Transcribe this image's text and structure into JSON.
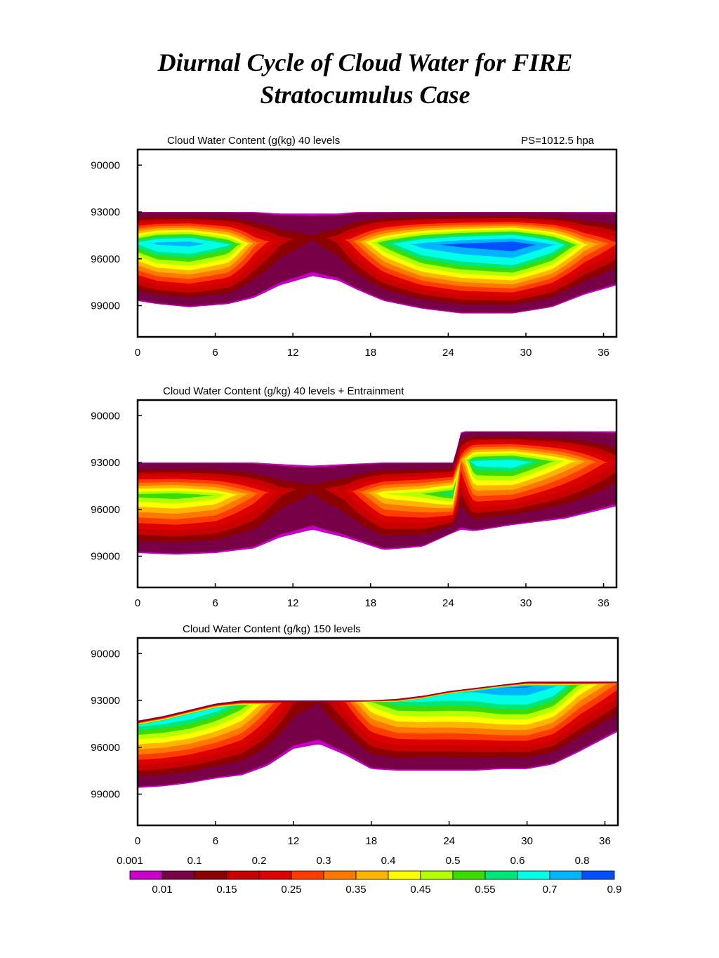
{
  "page": {
    "title_line1": "Diurnal Cycle of Cloud Water for FIRE",
    "title_line2": "Stratocumulus Case"
  },
  "chart_data": [
    {
      "type": "heatmap",
      "title": "Cloud Water Content (g(kg) 40 levels",
      "subtitle": "PS=1012.5 hpa",
      "xlabel": "",
      "ylabel": "",
      "x_ticks": [
        "0",
        "6",
        "12",
        "18",
        "24",
        "30",
        "36"
      ],
      "y_ticks": [
        "90000",
        "93000",
        "96000",
        "99000"
      ],
      "xlim": [
        0,
        37
      ],
      "ylim": [
        101000,
        89000
      ],
      "cloud": [
        {
          "x": 0,
          "top": 93000,
          "bot": 98700,
          "core": 95000,
          "peak": 0.62
        },
        {
          "x": 1.5,
          "top": 93000,
          "bot": 98900,
          "core": 95000,
          "peak": 0.73
        },
        {
          "x": 4,
          "top": 93000,
          "bot": 99100,
          "core": 95000,
          "peak": 0.76
        },
        {
          "x": 7,
          "top": 93000,
          "bot": 98900,
          "core": 95100,
          "peak": 0.62
        },
        {
          "x": 9,
          "top": 93000,
          "bot": 98500,
          "core": 95000,
          "peak": 0.33
        },
        {
          "x": 11,
          "top": 93100,
          "bot": 97700,
          "core": 94800,
          "peak": 0.18
        },
        {
          "x": 13.5,
          "top": 93100,
          "bot": 97100,
          "core": 94600,
          "peak": 0.11
        },
        {
          "x": 15.5,
          "top": 93100,
          "bot": 97400,
          "core": 94700,
          "peak": 0.18
        },
        {
          "x": 17,
          "top": 93000,
          "bot": 98000,
          "core": 94900,
          "peak": 0.33
        },
        {
          "x": 19,
          "top": 93000,
          "bot": 98700,
          "core": 95000,
          "peak": 0.55
        },
        {
          "x": 22,
          "top": 93000,
          "bot": 99200,
          "core": 95100,
          "peak": 0.76
        },
        {
          "x": 25,
          "top": 93000,
          "bot": 99500,
          "core": 95100,
          "peak": 0.85
        },
        {
          "x": 29,
          "top": 93000,
          "bot": 99500,
          "core": 95100,
          "peak": 0.92
        },
        {
          "x": 32,
          "top": 93000,
          "bot": 99100,
          "core": 95100,
          "peak": 0.72
        },
        {
          "x": 34.5,
          "top": 93000,
          "bot": 98300,
          "core": 95100,
          "peak": 0.42
        },
        {
          "x": 37,
          "top": 93000,
          "bot": 97700,
          "core": 95000,
          "peak": 0.26
        }
      ]
    },
    {
      "type": "heatmap",
      "title": "Cloud Water Content (g/kg) 40 levels + Entrainment",
      "xlabel": "",
      "ylabel": "",
      "x_ticks": [
        "0",
        "6",
        "12",
        "18",
        "24",
        "30",
        "36"
      ],
      "y_ticks": [
        "90000",
        "93000",
        "96000",
        "99000"
      ],
      "xlim": [
        0,
        37
      ],
      "ylim": [
        101000,
        89000
      ],
      "cloud": [
        {
          "x": 0,
          "top": 93000,
          "bot": 98800,
          "core": 95100,
          "peak": 0.53
        },
        {
          "x": 3,
          "top": 93000,
          "bot": 98900,
          "core": 95100,
          "peak": 0.55
        },
        {
          "x": 6,
          "top": 93000,
          "bot": 98800,
          "core": 95100,
          "peak": 0.5
        },
        {
          "x": 9,
          "top": 93000,
          "bot": 98500,
          "core": 95000,
          "peak": 0.32
        },
        {
          "x": 11,
          "top": 93100,
          "bot": 97800,
          "core": 94800,
          "peak": 0.18
        },
        {
          "x": 13.5,
          "top": 93200,
          "bot": 97300,
          "core": 94600,
          "peak": 0.12
        },
        {
          "x": 16,
          "top": 93100,
          "bot": 97800,
          "core": 94800,
          "peak": 0.2
        },
        {
          "x": 19,
          "top": 93000,
          "bot": 98600,
          "core": 95000,
          "peak": 0.45
        },
        {
          "x": 22,
          "top": 93000,
          "bot": 98400,
          "core": 95000,
          "peak": 0.5
        },
        {
          "x": 24.4,
          "top": 93000,
          "bot": 97500,
          "core": 95000,
          "peak": 0.6
        },
        {
          "x": 25,
          "top": 91000,
          "bot": 97300,
          "core": 92700,
          "peak": 0.3
        },
        {
          "x": 26,
          "top": 91000,
          "bot": 97400,
          "core": 93000,
          "peak": 0.65
        },
        {
          "x": 29,
          "top": 91000,
          "bot": 97000,
          "core": 93000,
          "peak": 0.68
        },
        {
          "x": 33,
          "top": 91000,
          "bot": 96600,
          "core": 92900,
          "peak": 0.45
        },
        {
          "x": 37,
          "top": 91000,
          "bot": 95800,
          "core": 93000,
          "peak": 0.2
        }
      ]
    },
    {
      "type": "heatmap",
      "title": "Cloud Water Content (g/kg) 150 levels",
      "xlabel": "",
      "ylabel": "",
      "x_ticks": [
        "0",
        "6",
        "12",
        "18",
        "24",
        "30",
        "36"
      ],
      "y_ticks": [
        "90000",
        "93000",
        "96000",
        "99000"
      ],
      "xlim": [
        0,
        37
      ],
      "ylim": [
        101000,
        89000
      ],
      "cloud": [
        {
          "x": 0,
          "top": 94300,
          "bot": 98600,
          "core": 94600,
          "peak": 0.62
        },
        {
          "x": 2,
          "top": 94000,
          "bot": 98500,
          "core": 94300,
          "peak": 0.65
        },
        {
          "x": 4,
          "top": 93600,
          "bot": 98300,
          "core": 93900,
          "peak": 0.67
        },
        {
          "x": 6,
          "top": 93200,
          "bot": 98000,
          "core": 93500,
          "peak": 0.65
        },
        {
          "x": 8,
          "top": 93000,
          "bot": 97800,
          "core": 93300,
          "peak": 0.55
        },
        {
          "x": 10,
          "top": 93000,
          "bot": 97200,
          "core": 93200,
          "peak": 0.35
        },
        {
          "x": 12,
          "top": 93000,
          "bot": 96100,
          "core": 93100,
          "peak": 0.16
        },
        {
          "x": 14,
          "top": 93000,
          "bot": 95800,
          "core": 93100,
          "peak": 0.1
        },
        {
          "x": 16,
          "top": 93000,
          "bot": 96500,
          "core": 93100,
          "peak": 0.25
        },
        {
          "x": 18,
          "top": 93000,
          "bot": 97400,
          "core": 93100,
          "peak": 0.5
        },
        {
          "x": 20,
          "top": 92900,
          "bot": 97500,
          "core": 93100,
          "peak": 0.6
        },
        {
          "x": 22,
          "top": 92700,
          "bot": 97500,
          "core": 92900,
          "peak": 0.64
        },
        {
          "x": 24,
          "top": 92400,
          "bot": 97500,
          "core": 92600,
          "peak": 0.68
        },
        {
          "x": 26,
          "top": 92200,
          "bot": 97500,
          "core": 92400,
          "peak": 0.72
        },
        {
          "x": 28,
          "top": 92000,
          "bot": 97400,
          "core": 92200,
          "peak": 0.8
        },
        {
          "x": 30,
          "top": 91800,
          "bot": 97400,
          "core": 92100,
          "peak": 0.82
        },
        {
          "x": 32,
          "top": 91800,
          "bot": 97100,
          "core": 92100,
          "peak": 0.72
        },
        {
          "x": 34,
          "top": 91800,
          "bot": 96300,
          "core": 92000,
          "peak": 0.5
        },
        {
          "x": 37,
          "top": 91800,
          "bot": 95000,
          "core": 91900,
          "peak": 0.3
        }
      ]
    }
  ],
  "colorbar": {
    "levels": [
      0.001,
      0.01,
      0.1,
      0.15,
      0.2,
      0.25,
      0.3,
      0.35,
      0.4,
      0.45,
      0.5,
      0.55,
      0.6,
      0.7,
      0.8,
      0.9
    ],
    "colors": [
      "#c800c8",
      "#780046",
      "#8c0000",
      "#c80000",
      "#dc0000",
      "#ff3c00",
      "#ff7800",
      "#ffb400",
      "#ffff00",
      "#b4ff00",
      "#3cdc00",
      "#00e678",
      "#00ffe6",
      "#00b4ff",
      "#0050ff"
    ],
    "labels_top": [
      "0.001",
      "0.1",
      "0.2",
      "0.3",
      "0.4",
      "0.5",
      "0.6",
      "0.8"
    ],
    "labels_bottom": [
      "0.01",
      "0.15",
      "0.25",
      "0.35",
      "0.45",
      "0.55",
      "0.7",
      "0.9"
    ]
  }
}
